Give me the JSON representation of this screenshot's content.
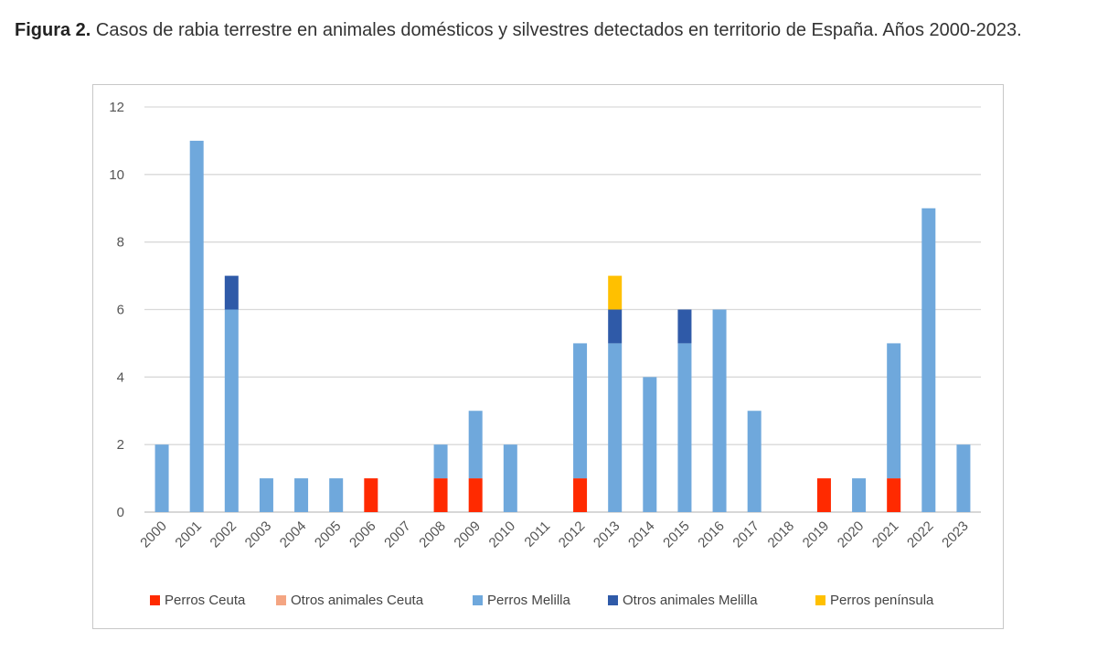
{
  "caption": {
    "lead": "Figura 2.",
    "text": "Casos de rabia terrestre en animales domésticos y silvestres detectados en territorio de España. Años 2000-2023."
  },
  "chart_data": {
    "type": "bar",
    "stacked": true,
    "title": "",
    "xlabel": "",
    "ylabel": "",
    "ylim": [
      0,
      12
    ],
    "yticks": [
      0,
      2,
      4,
      6,
      8,
      10,
      12
    ],
    "grid": true,
    "legend_position": "bottom",
    "categories": [
      "2000",
      "2001",
      "2002",
      "2003",
      "2004",
      "2005",
      "2006",
      "2007",
      "2008",
      "2009",
      "2010",
      "2011",
      "2012",
      "2013",
      "2014",
      "2015",
      "2016",
      "2017",
      "2018",
      "2019",
      "2020",
      "2021",
      "2022",
      "2023"
    ],
    "series": [
      {
        "name": "Perros Ceuta",
        "color": "#ff2a00",
        "values": [
          0,
          0,
          0,
          0,
          0,
          0,
          1,
          0,
          1,
          1,
          0,
          0,
          1,
          0,
          0,
          0,
          0,
          0,
          0,
          1,
          0,
          1,
          0,
          0
        ]
      },
      {
        "name": "Otros animales Ceuta",
        "color": "#f4a582",
        "values": [
          0,
          0,
          0,
          0,
          0,
          0,
          0,
          0,
          0,
          0,
          0,
          0,
          0,
          0,
          0,
          0,
          0,
          0,
          0,
          0,
          0,
          0,
          0,
          0
        ]
      },
      {
        "name": "Perros Melilla",
        "color": "#6fa8dc",
        "values": [
          2,
          11,
          6,
          1,
          1,
          1,
          0,
          0,
          1,
          2,
          2,
          0,
          4,
          5,
          4,
          5,
          6,
          3,
          0,
          0,
          1,
          4,
          9,
          2
        ]
      },
      {
        "name": "Otros animales Melilla",
        "color": "#2f5aa8",
        "values": [
          0,
          0,
          1,
          0,
          0,
          0,
          0,
          0,
          0,
          0,
          0,
          0,
          0,
          1,
          0,
          1,
          0,
          0,
          0,
          0,
          0,
          0,
          0,
          0
        ]
      },
      {
        "name": "Perros península",
        "color": "#ffc000",
        "values": [
          0,
          0,
          0,
          0,
          0,
          0,
          0,
          0,
          0,
          0,
          0,
          0,
          0,
          1,
          0,
          0,
          0,
          0,
          0,
          0,
          0,
          0,
          0,
          0
        ]
      }
    ]
  }
}
